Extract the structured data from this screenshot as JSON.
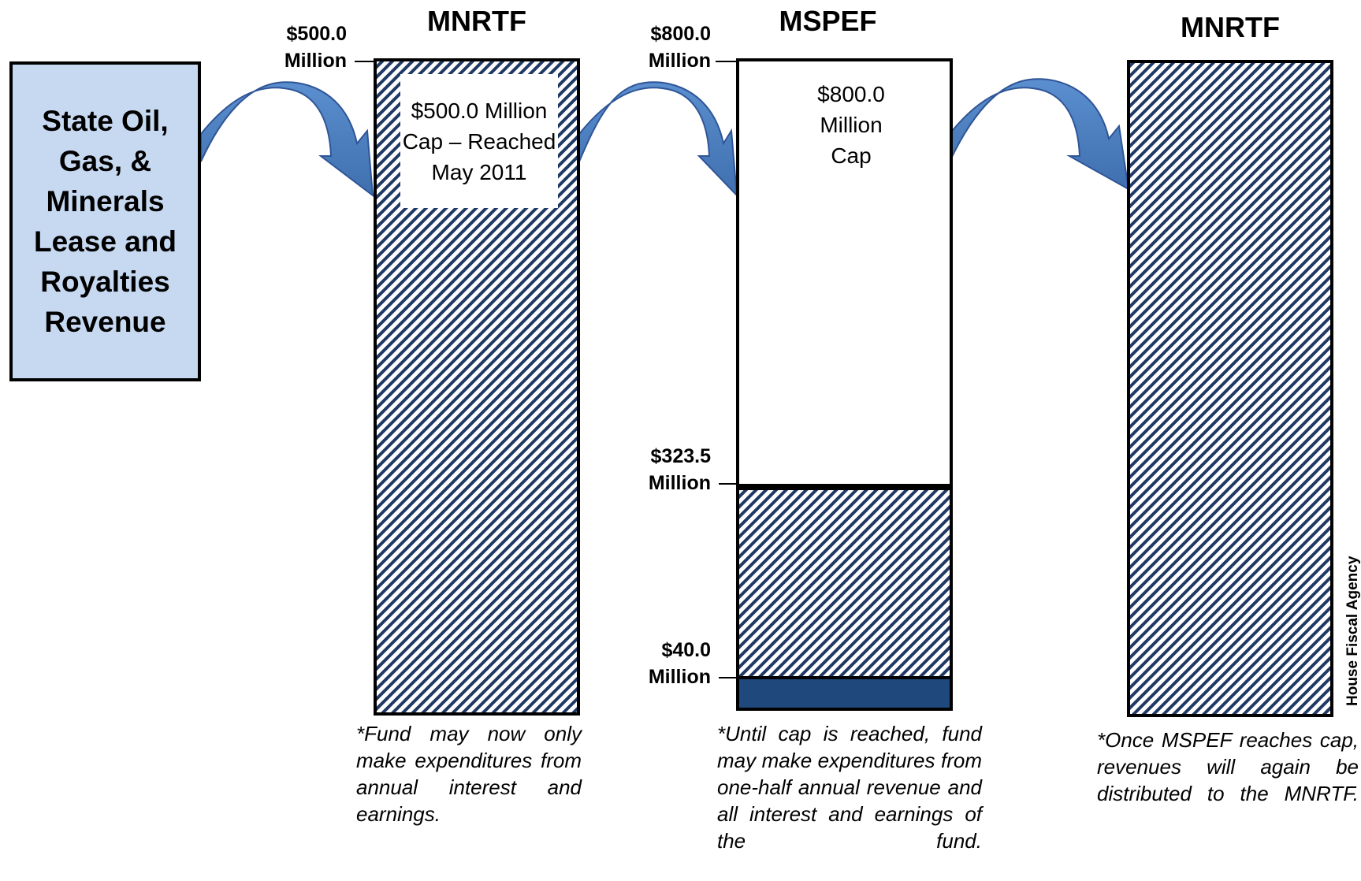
{
  "source_box": {
    "label": "State Oil, Gas, & Minerals Lease and Royalties Revenue"
  },
  "funds": {
    "mnrtf_left": {
      "title": "MNRTF",
      "level_top": [
        "$500.0",
        "Million"
      ],
      "cap_label": "$500.0 Million Cap – Reached May 2011",
      "note": "*Fund may now only make expenditures from annual interest and earnings."
    },
    "mspef": {
      "title": "MSPEF",
      "level_top": [
        "$800.0",
        "Million"
      ],
      "cap_label": "$800.0 Million Cap",
      "level_mid": [
        "$323.5",
        "Million"
      ],
      "level_low": [
        "$40.0",
        "Million"
      ],
      "note": "*Until cap is reached, fund may make expenditures from one-half annual revenue and all interest and earnings of the fund."
    },
    "mnrtf_right": {
      "title": "MNRTF",
      "note": "*Once MSPEF reaches cap, revenues will again be distributed to the MNRTF."
    }
  },
  "chart_data": {
    "type": "bar",
    "categories": [
      "MNRTF",
      "MSPEF",
      "MNRTF"
    ],
    "values_million": [
      500.0,
      323.5,
      null
    ],
    "caps_million": [
      500.0,
      800.0,
      null
    ],
    "mspef_floor_million": 40.0
  },
  "watermark": "House Fiscal Agency",
  "colors": {
    "source_fill": "#c6d9f1",
    "arrow_fill": "#4f81bd",
    "hatch_stripe": "#1f3864",
    "floor_fill": "#1f497d"
  }
}
